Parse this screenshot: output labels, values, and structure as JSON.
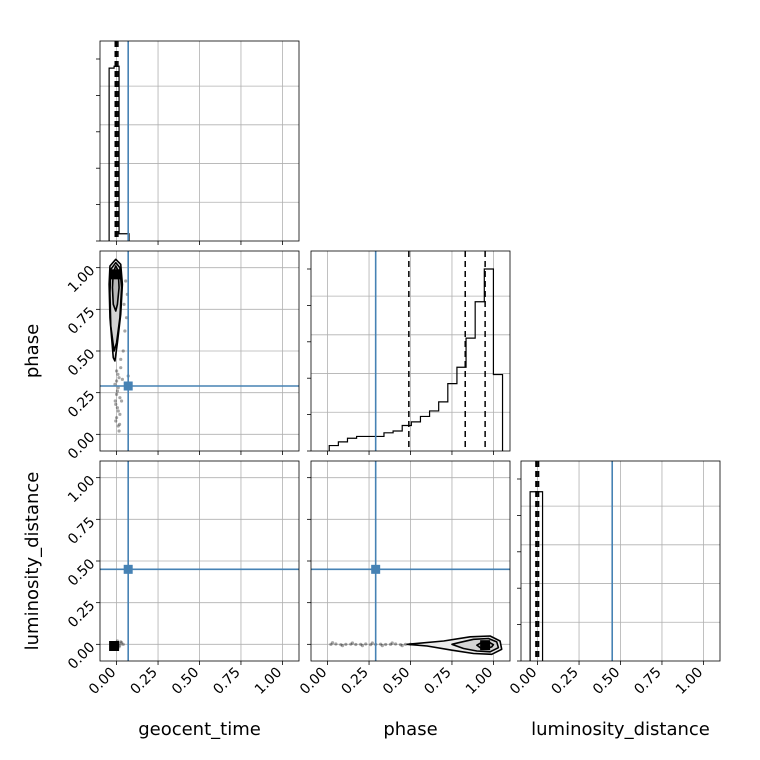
{
  "chart_data": {
    "type": "corner",
    "parameters": [
      "geocent_time",
      "phase",
      "luminosity_distance"
    ],
    "xlabels": [
      "geocent_time",
      "phase",
      "luminosity_distance"
    ],
    "ylabels": [
      "",
      "phase",
      "luminosity_distance"
    ],
    "ticks": [
      0.0,
      0.25,
      0.5,
      0.75,
      1.0
    ],
    "tick_labels": [
      "0.00",
      "0.25",
      "0.50",
      "0.75",
      "1.00"
    ],
    "grid": true,
    "colors": {
      "truth": "#4682b4",
      "hist": "#000000",
      "quantile": "#000000",
      "contour": "#000000"
    },
    "truths": {
      "geocent_time": 0.07,
      "phase": 0.29,
      "luminosity_distance": 0.45
    },
    "diagonal": [
      {
        "param": "geocent_time",
        "xlim": [
          -0.1,
          1.1
        ],
        "bins": [
          {
            "x0": -0.045,
            "x1": -0.015,
            "h": 0.95
          },
          {
            "x0": -0.015,
            "x1": 0.015,
            "h": 0.96
          },
          {
            "x0": 0.015,
            "x1": 0.045,
            "h": 0.04
          },
          {
            "x0": 0.045,
            "x1": 0.075,
            "h": 0.04
          }
        ],
        "quantiles": [
          -0.008,
          0.0,
          0.008
        ]
      },
      {
        "param": "phase",
        "xlim": [
          -0.1,
          1.1
        ],
        "bins": [
          {
            "x0": 0.01,
            "x1": 0.065,
            "h": 0.03
          },
          {
            "x0": 0.065,
            "x1": 0.12,
            "h": 0.05
          },
          {
            "x0": 0.12,
            "x1": 0.175,
            "h": 0.07
          },
          {
            "x0": 0.175,
            "x1": 0.23,
            "h": 0.08
          },
          {
            "x0": 0.23,
            "x1": 0.285,
            "h": 0.08
          },
          {
            "x0": 0.285,
            "x1": 0.34,
            "h": 0.08
          },
          {
            "x0": 0.34,
            "x1": 0.395,
            "h": 0.1
          },
          {
            "x0": 0.395,
            "x1": 0.45,
            "h": 0.11
          },
          {
            "x0": 0.45,
            "x1": 0.505,
            "h": 0.14
          },
          {
            "x0": 0.505,
            "x1": 0.56,
            "h": 0.16
          },
          {
            "x0": 0.56,
            "x1": 0.615,
            "h": 0.19
          },
          {
            "x0": 0.615,
            "x1": 0.67,
            "h": 0.22
          },
          {
            "x0": 0.67,
            "x1": 0.725,
            "h": 0.27
          },
          {
            "x0": 0.725,
            "x1": 0.78,
            "h": 0.37
          },
          {
            "x0": 0.78,
            "x1": 0.835,
            "h": 0.46
          },
          {
            "x0": 0.835,
            "x1": 0.89,
            "h": 0.62
          },
          {
            "x0": 0.89,
            "x1": 0.945,
            "h": 0.82
          },
          {
            "x0": 0.945,
            "x1": 1.0,
            "h": 1.0
          },
          {
            "x0": 1.0,
            "x1": 1.055,
            "h": 0.42
          }
        ],
        "quantiles": [
          0.49,
          0.83,
          0.95
        ]
      },
      {
        "param": "luminosity_distance",
        "xlim": [
          -0.1,
          1.1
        ],
        "bins": [
          {
            "x0": -0.045,
            "x1": -0.015,
            "h": 0.93
          },
          {
            "x0": -0.015,
            "x1": 0.015,
            "h": 0.93
          },
          {
            "x0": 0.015,
            "x1": 0.03,
            "h": 0.93
          }
        ],
        "quantiles": [
          -0.01,
          -0.003,
          0.006
        ]
      }
    ],
    "pairs": [
      {
        "x": "geocent_time",
        "y": "phase",
        "xlim": [
          -0.1,
          1.1
        ],
        "ylim": [
          -0.1,
          1.1
        ],
        "density_peak": [
          -0.005,
          0.96
        ],
        "contours": [
          [
            [
              -0.02,
              0.78
            ],
            [
              -0.025,
              0.88
            ],
            [
              -0.02,
              0.97
            ],
            [
              -0.005,
              1.01
            ],
            [
              0.01,
              0.98
            ],
            [
              0.015,
              0.88
            ],
            [
              0.005,
              0.78
            ],
            [
              -0.005,
              0.74
            ]
          ],
          [
            [
              -0.035,
              0.65
            ],
            [
              -0.04,
              0.85
            ],
            [
              -0.035,
              0.99
            ],
            [
              -0.005,
              1.03
            ],
            [
              0.02,
              1.0
            ],
            [
              0.03,
              0.88
            ],
            [
              0.02,
              0.7
            ],
            [
              0.0,
              0.55
            ],
            [
              -0.015,
              0.5
            ]
          ],
          [
            [
              -0.04,
              0.7
            ],
            [
              -0.045,
              0.9
            ],
            [
              -0.04,
              1.01
            ],
            [
              -0.005,
              1.05
            ],
            [
              0.025,
              1.02
            ],
            [
              0.035,
              0.9
            ],
            [
              0.025,
              0.72
            ],
            [
              0.005,
              0.55
            ],
            [
              -0.01,
              0.44
            ],
            [
              -0.02,
              0.46
            ],
            [
              -0.03,
              0.58
            ]
          ]
        ],
        "points": [
          [
            0.0,
            0.1
          ],
          [
            0.01,
            0.14
          ],
          [
            -0.005,
            0.18
          ],
          [
            0.02,
            0.22
          ],
          [
            0.005,
            0.26
          ],
          [
            -0.01,
            0.3
          ],
          [
            0.015,
            0.34
          ],
          [
            0.0,
            0.38
          ],
          [
            0.025,
            0.4
          ],
          [
            0.01,
            0.05
          ],
          [
            -0.005,
            0.08
          ],
          [
            0.02,
            0.12
          ],
          [
            0.03,
            0.2
          ],
          [
            0.0,
            0.24
          ],
          [
            0.035,
            0.33
          ],
          [
            0.025,
            0.45
          ],
          [
            0.04,
            0.5
          ],
          [
            0.05,
            0.62
          ],
          [
            0.06,
            0.7
          ],
          [
            0.045,
            0.78
          ],
          [
            0.065,
            0.84
          ],
          [
            0.055,
            0.92
          ],
          [
            0.07,
            0.35
          ],
          [
            0.01,
            0.28
          ],
          [
            0.005,
            0.16
          ],
          [
            0.015,
            0.02
          ],
          [
            0.0,
            0.32
          ],
          [
            -0.008,
            0.2
          ],
          [
            0.018,
            0.06
          ],
          [
            0.008,
            0.36
          ]
        ]
      },
      {
        "x": "geocent_time",
        "y": "luminosity_distance",
        "xlim": [
          -0.1,
          1.1
        ],
        "ylim": [
          -0.1,
          1.1
        ],
        "density_peak": [
          -0.015,
          -0.01
        ],
        "contours": [],
        "points": [
          [
            0.01,
            0.005
          ],
          [
            0.02,
            -0.005
          ],
          [
            0.03,
            0.01
          ],
          [
            0.04,
            0.0
          ],
          [
            0.005,
            0.02
          ],
          [
            0.015,
            -0.015
          ],
          [
            0.025,
            0.015
          ]
        ]
      },
      {
        "x": "phase",
        "y": "luminosity_distance",
        "xlim": [
          -0.1,
          1.1
        ],
        "ylim": [
          -0.1,
          1.1
        ],
        "density_peak": [
          0.95,
          -0.005
        ],
        "contours": [
          [
            [
              0.9,
              -0.005
            ],
            [
              0.92,
              -0.02
            ],
            [
              0.96,
              -0.025
            ],
            [
              0.99,
              -0.015
            ],
            [
              1.0,
              -0.002
            ],
            [
              0.97,
              0.015
            ],
            [
              0.93,
              0.012
            ]
          ],
          [
            [
              0.75,
              0.0
            ],
            [
              0.82,
              -0.025
            ],
            [
              0.9,
              -0.04
            ],
            [
              0.98,
              -0.045
            ],
            [
              1.03,
              -0.02
            ],
            [
              1.02,
              0.015
            ],
            [
              0.97,
              0.035
            ],
            [
              0.88,
              0.03
            ],
            [
              0.8,
              0.012
            ]
          ],
          [
            [
              0.48,
              0.0
            ],
            [
              0.6,
              -0.01
            ],
            [
              0.75,
              -0.035
            ],
            [
              0.88,
              -0.055
            ],
            [
              0.99,
              -0.06
            ],
            [
              1.05,
              -0.03
            ],
            [
              1.04,
              0.02
            ],
            [
              0.98,
              0.05
            ],
            [
              0.86,
              0.045
            ],
            [
              0.7,
              0.02
            ]
          ]
        ],
        "points": [
          [
            0.02,
            0.0
          ],
          [
            0.05,
            0.002
          ],
          [
            0.08,
            -0.002
          ],
          [
            0.11,
            0.0
          ],
          [
            0.14,
            0.001
          ],
          [
            0.17,
            -0.001
          ],
          [
            0.2,
            0.0
          ],
          [
            0.23,
            0.002
          ],
          [
            0.26,
            -0.002
          ],
          [
            0.29,
            0.0
          ],
          [
            0.32,
            0.001
          ],
          [
            0.35,
            -0.001
          ],
          [
            0.38,
            0.0
          ],
          [
            0.41,
            0.002
          ],
          [
            0.44,
            -0.002
          ],
          [
            0.47,
            0.0
          ],
          [
            0.5,
            0.001
          ],
          [
            0.03,
            0.01
          ],
          [
            0.09,
            -0.008
          ],
          [
            0.15,
            0.008
          ],
          [
            0.21,
            -0.008
          ],
          [
            0.27,
            0.008
          ],
          [
            0.33,
            -0.008
          ],
          [
            0.39,
            0.008
          ],
          [
            0.45,
            -0.008
          ]
        ]
      }
    ]
  }
}
